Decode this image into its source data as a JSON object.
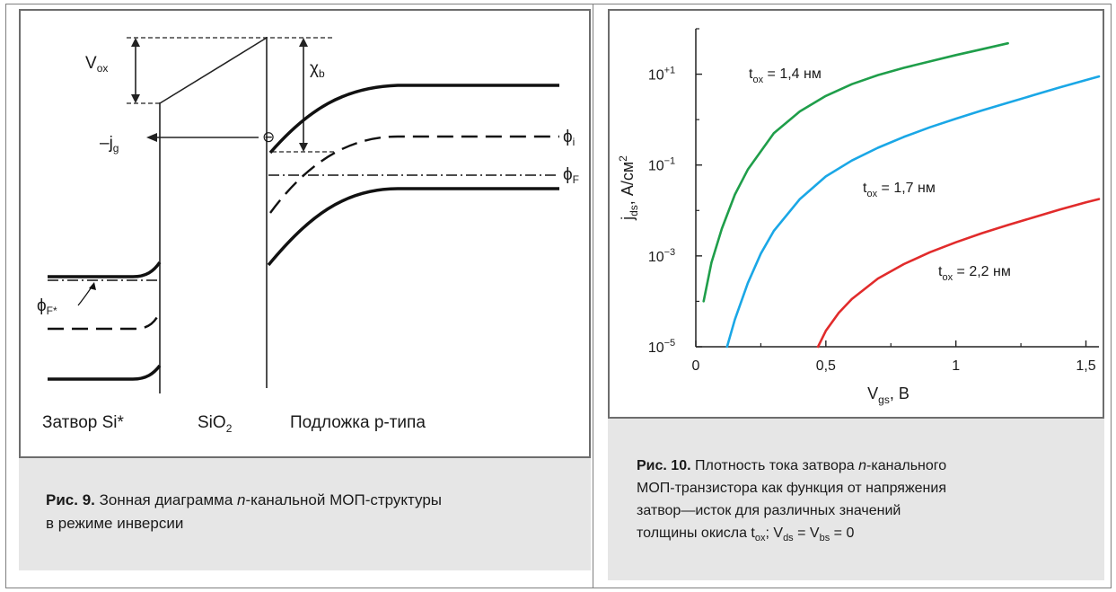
{
  "figure9": {
    "labels": {
      "vox_main": "V",
      "vox_sub": "ox",
      "chi_main": "χ",
      "chi_sub": "b",
      "jg_main": "–j",
      "jg_sub": "g",
      "phi_i_main": "ϕ",
      "phi_i_sub": "i",
      "phi_f_main": "ϕ",
      "phi_f_sub": "F",
      "phi_fstar_main": "ϕ",
      "phi_fstar_sub": "F*",
      "electron": "⊖",
      "gate": "Затвор Si*",
      "oxide_main": "SiO",
      "oxide_sub": "2",
      "substrate": "Подложка p-типа"
    },
    "caption": {
      "label": "Рис. 9.",
      "text_1": " Зонная диаграмма ",
      "text_italic": "n",
      "text_2": "-канальной МОП-структуры",
      "line2": "в режиме инверсии"
    }
  },
  "figure10": {
    "caption": {
      "label": "Рис. 10.",
      "l1_a": " Плотность тока затвора ",
      "l1_italic": "n",
      "l1_b": "-канального",
      "l2": "МОП-транзистора как функция от напряжения",
      "l3": "затвор—исток для различных значений",
      "l4_a": "толщины окисла t",
      "l4_sub1": "ox",
      "l4_b": "; V",
      "l4_sub2": "ds",
      "l4_c": " = V",
      "l4_sub3": "bs",
      "l4_d": " = 0"
    }
  },
  "chart_data": {
    "type": "line",
    "xlabel": "V_gs, В",
    "ylabel": "j_ds, А/см²",
    "xlim": [
      0,
      1.55
    ],
    "ylim_log10": [
      -5,
      2
    ],
    "x_ticks": [
      "0",
      "0,5",
      "1",
      "1,5"
    ],
    "y_ticks": [
      {
        "base": "10",
        "exp": "+1"
      },
      {
        "base": "10",
        "exp": "−1"
      },
      {
        "base": "10",
        "exp": "−3"
      },
      {
        "base": "10",
        "exp": "−5"
      }
    ],
    "grid": false,
    "series": [
      {
        "name": "t_ox = 1,4 нм",
        "label_main": "t",
        "label_sub": "ox",
        "label_rest": " = 1,4 нм",
        "color": "#1f9e4a",
        "x": [
          0.03,
          0.06,
          0.1,
          0.15,
          0.2,
          0.3,
          0.4,
          0.5,
          0.6,
          0.7,
          0.8,
          0.9,
          1.0,
          1.1,
          1.2
        ],
        "log10_y": [
          -4.0,
          -3.15,
          -2.4,
          -1.65,
          -1.1,
          -0.3,
          0.18,
          0.52,
          0.78,
          0.98,
          1.14,
          1.28,
          1.42,
          1.55,
          1.68
        ]
      },
      {
        "name": "t_ox = 1,7 нм",
        "label_main": "t",
        "label_sub": "ox",
        "label_rest": " = 1,7 нм",
        "color": "#1aa7e6",
        "x": [
          0.12,
          0.15,
          0.2,
          0.25,
          0.3,
          0.4,
          0.5,
          0.6,
          0.7,
          0.8,
          0.9,
          1.0,
          1.1,
          1.2,
          1.3,
          1.4,
          1.5,
          1.55
        ],
        "log10_y": [
          -5.0,
          -4.4,
          -3.6,
          -2.95,
          -2.45,
          -1.75,
          -1.25,
          -0.9,
          -0.62,
          -0.38,
          -0.17,
          0.02,
          0.2,
          0.37,
          0.54,
          0.71,
          0.87,
          0.95
        ]
      },
      {
        "name": "t_ox = 2,2 нм",
        "label_main": "t",
        "label_sub": "ox",
        "label_rest": " = 2,2 нм",
        "color": "#e12b2b",
        "x": [
          0.47,
          0.5,
          0.55,
          0.6,
          0.7,
          0.8,
          0.9,
          1.0,
          1.1,
          1.2,
          1.3,
          1.4,
          1.5,
          1.55
        ],
        "log10_y": [
          -5.0,
          -4.65,
          -4.25,
          -3.95,
          -3.5,
          -3.18,
          -2.92,
          -2.7,
          -2.5,
          -2.32,
          -2.15,
          -1.98,
          -1.82,
          -1.75
        ]
      }
    ]
  }
}
